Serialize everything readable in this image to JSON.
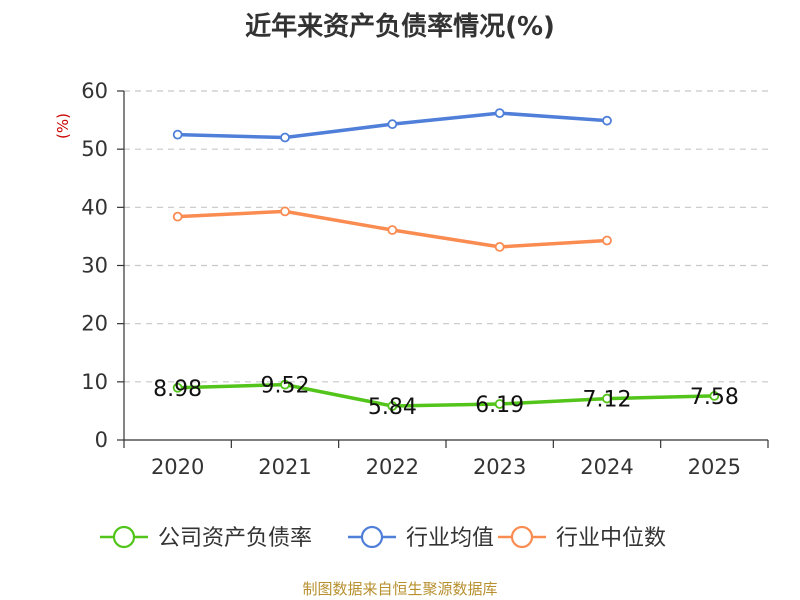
{
  "chart_data": {
    "type": "line",
    "title": "近年来资产负债率情况(%)",
    "ylabel": "(%)",
    "xlabel": "",
    "categories": [
      "2020",
      "2021",
      "2022",
      "2023",
      "2024",
      "2025"
    ],
    "ylim": [
      0,
      60
    ],
    "yticks": [
      0,
      10,
      20,
      30,
      40,
      50,
      60
    ],
    "grid": true,
    "legend_position": "bottom",
    "series": [
      {
        "name": "公司资产负债率",
        "color": "#52c41a",
        "values": [
          8.98,
          9.52,
          5.84,
          6.19,
          7.12,
          7.58
        ],
        "labels": [
          "8.98",
          "9.52",
          "5.84",
          "6.19",
          "7.12",
          "7.58"
        ]
      },
      {
        "name": "行业均值",
        "color": "#4f7fd9",
        "values": [
          52.5,
          52.0,
          54.3,
          56.2,
          54.9,
          null
        ]
      },
      {
        "name": "行业中位数",
        "color": "#fa8c52",
        "values": [
          38.4,
          39.3,
          36.1,
          33.2,
          34.3,
          null
        ]
      }
    ]
  },
  "footer": "制图数据来自恒生聚源数据库"
}
